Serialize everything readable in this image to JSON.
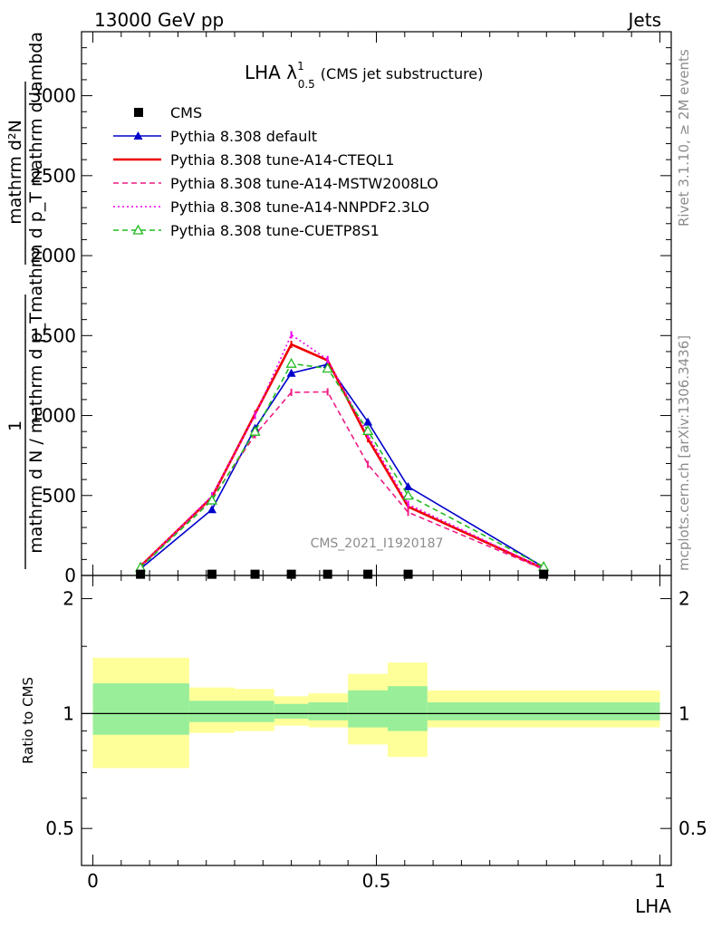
{
  "header": {
    "energy_label": "13000 GeV pp",
    "category_label": "Jets"
  },
  "plot": {
    "title_main": "LHA λ",
    "title_sup": "1",
    "title_sub": "0.5",
    "title_suffix": "(CMS jet substructure)",
    "analysis_id": "CMS_2021_I1920187",
    "rivet_label": "Rivet 3.1.10, ≥ 2M events",
    "mcplots_label": "mcplots.cern.ch [arXiv:1306.3436]",
    "ylabel_num": "mathrm d²N",
    "ylabel_den": "mathrm d p_T mathrm d lambda",
    "ylabel_num2": "1",
    "ylabel_den2": "mathrm d N / mathrm d p_T",
    "ratio_ylabel": "Ratio to CMS",
    "xlabel": "LHA"
  },
  "chart_data": {
    "type": "line",
    "x_range": [
      -0.02,
      1.02
    ],
    "y_range": [
      0,
      3400
    ],
    "ratio_range": [
      0.4,
      2.3
    ],
    "x_ticks": [
      "0",
      "0.5",
      "1"
    ],
    "y_ticks": [
      "0",
      "500",
      "1000",
      "1500",
      "2000",
      "2500",
      "3000"
    ],
    "ratio_ticks": [
      "0.5",
      "1",
      "2"
    ],
    "x": [
      0.084,
      0.21,
      0.286,
      0.35,
      0.414,
      0.485,
      0.556,
      0.795
    ],
    "cms_data": {
      "name": "CMS",
      "x": [
        0.084,
        0.21,
        0.286,
        0.35,
        0.414,
        0.485,
        0.556,
        0.795
      ],
      "values": [
        2,
        2,
        2,
        2,
        2,
        2,
        2,
        2
      ]
    },
    "series": [
      {
        "name": "Pythia 8.308 default",
        "color": "#0000cc",
        "style": "solid",
        "marker": "triangle-filled",
        "values": [
          42,
          412,
          920,
          1265,
          1320,
          960,
          555,
          52
        ]
      },
      {
        "name": "Pythia 8.308 tune-A14-CTEQL1",
        "color": "#ee0000",
        "style": "solid-thick",
        "marker": "none",
        "values": [
          58,
          490,
          1010,
          1445,
          1345,
          855,
          430,
          43
        ]
      },
      {
        "name": "Pythia 8.308 tune-A14-MSTW2008LO",
        "color": "#ee1b84",
        "style": "dashed",
        "marker": "none",
        "values": [
          50,
          480,
          880,
          1145,
          1148,
          695,
          395,
          38
        ]
      },
      {
        "name": "Pythia 8.308 tune-A14-NNPDF2.3LO",
        "color": "#ee00ee",
        "style": "dotted",
        "marker": "none",
        "values": [
          56,
          498,
          1000,
          1505,
          1350,
          880,
          445,
          45
        ]
      },
      {
        "name": "Pythia 8.308 tune-CUETP8S1",
        "color": "#22bb22",
        "style": "dashed",
        "marker": "triangle-open",
        "values": [
          50,
          470,
          900,
          1325,
          1295,
          905,
          500,
          55
        ]
      }
    ],
    "ratio_bands": [
      {
        "x0": 0.0,
        "x1": 0.17,
        "green": [
          0.88,
          1.2
        ],
        "yellow": [
          0.72,
          1.4
        ]
      },
      {
        "x0": 0.17,
        "x1": 0.25,
        "green": [
          0.95,
          1.08
        ],
        "yellow": [
          0.89,
          1.17
        ]
      },
      {
        "x0": 0.25,
        "x1": 0.32,
        "green": [
          0.95,
          1.08
        ],
        "yellow": [
          0.9,
          1.16
        ]
      },
      {
        "x0": 0.32,
        "x1": 0.38,
        "green": [
          0.97,
          1.06
        ],
        "yellow": [
          0.93,
          1.11
        ]
      },
      {
        "x0": 0.38,
        "x1": 0.45,
        "green": [
          0.96,
          1.07
        ],
        "yellow": [
          0.92,
          1.13
        ]
      },
      {
        "x0": 0.45,
        "x1": 0.52,
        "green": [
          0.92,
          1.15
        ],
        "yellow": [
          0.83,
          1.27
        ]
      },
      {
        "x0": 0.52,
        "x1": 0.59,
        "green": [
          0.9,
          1.18
        ],
        "yellow": [
          0.77,
          1.36
        ]
      },
      {
        "x0": 0.59,
        "x1": 1.0,
        "green": [
          0.96,
          1.07
        ],
        "yellow": [
          0.92,
          1.15
        ]
      }
    ]
  }
}
